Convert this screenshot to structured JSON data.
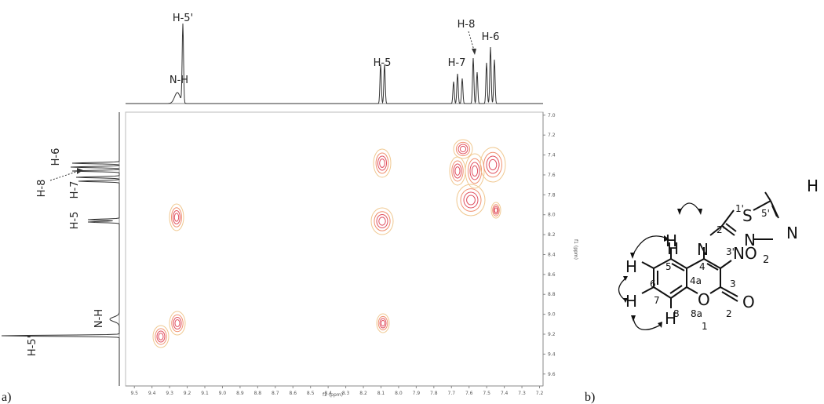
{
  "panels": {
    "a_label": "a)",
    "b_label": "b)"
  },
  "spectrum": {
    "top_labels": {
      "h5p": "H-5'",
      "nh": "N-H",
      "h5": "H-5",
      "h7": "H-7",
      "h8": "H-8",
      "h6": "H-6"
    },
    "side_labels": {
      "h6": "H-6",
      "h8": "H-8",
      "h7": "H-7",
      "h5": "H-5",
      "nh": "N-H",
      "h5p": "H-5'"
    },
    "x_ticks": [
      "9.5",
      "9.4",
      "9.3",
      "9.2",
      "9.1",
      "9.0",
      "8.9",
      "8.8",
      "8.7",
      "8.6",
      "8.5",
      "8.4",
      "8.3",
      "8.2",
      "8.1",
      "8.0",
      "7.9",
      "7.8",
      "7.7",
      "7.6",
      "7.5",
      "7.4",
      "7.3",
      "7.2"
    ],
    "y_ticks": [
      "7.0",
      "7.2",
      "7.4",
      "7.6",
      "7.8",
      "8.0",
      "8.2",
      "8.4",
      "8.6",
      "8.8",
      "9.0",
      "9.2",
      "9.4",
      "9.6"
    ],
    "xlabel": "f2 (ppm)",
    "ylabel": "f1 (ppm)",
    "colors": {
      "contour_outer": "#f0c890",
      "contour_mid": "#f09070",
      "contour_inner": "#e05060",
      "trace": "#333333"
    }
  },
  "molecule": {
    "atoms": {
      "H_top": "H",
      "S": "S",
      "N_a": "N",
      "N_b": "N",
      "H_n": "H",
      "N_link": "N",
      "NO2": "NO",
      "NO2_sub": "2",
      "O_ring": "O",
      "O_keto": "O",
      "H5": "H",
      "H6": "H",
      "H7": "H",
      "H8": "H"
    },
    "locants": {
      "l1p": "1'",
      "l5p": "5'",
      "l2p": "2'",
      "l3p": "3'",
      "l4": "4",
      "l4a": "4a",
      "l5": "5",
      "l6": "6",
      "l7": "7",
      "l8": "8",
      "l8a": "8a",
      "l1": "1",
      "l2": "2",
      "l3": "3"
    }
  }
}
